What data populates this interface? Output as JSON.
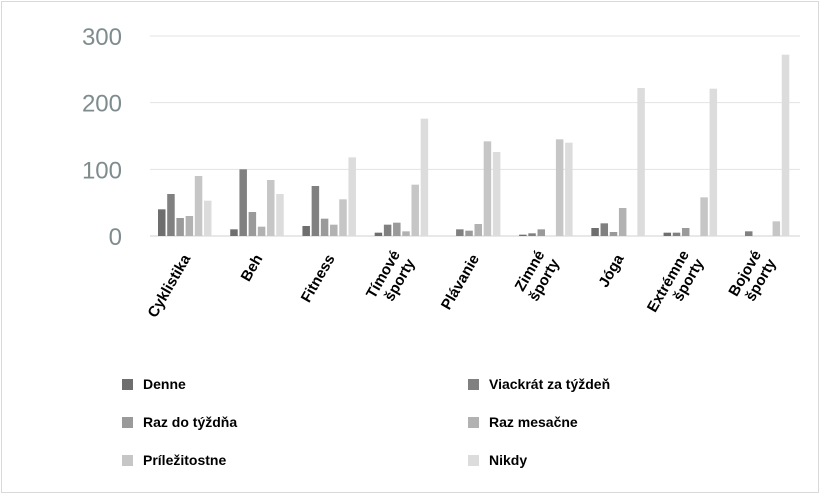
{
  "chart_data": {
    "type": "bar",
    "categories": [
      [
        "Cyklistika"
      ],
      [
        "Beh"
      ],
      [
        "Fitness"
      ],
      [
        "Tímové",
        "športy"
      ],
      [
        "Plávanie"
      ],
      [
        "Zimné",
        "športy"
      ],
      [
        "Jóga"
      ],
      [
        "Extrémne",
        "športy"
      ],
      [
        "Bojové",
        "športy"
      ]
    ],
    "series": [
      {
        "name": "Denne",
        "color": "#6e6e6e",
        "values": [
          40,
          10,
          15,
          5,
          0,
          2,
          12,
          5,
          0
        ]
      },
      {
        "name": "Viackrát za týždeň",
        "color": "#808080",
        "values": [
          63,
          100,
          75,
          17,
          10,
          4,
          19,
          5,
          7
        ]
      },
      {
        "name": "Raz do týždňa",
        "color": "#9a9a9a",
        "values": [
          27,
          36,
          26,
          20,
          8,
          10,
          6,
          12,
          0
        ]
      },
      {
        "name": "Raz mesačne",
        "color": "#b2b2b2",
        "values": [
          30,
          14,
          17,
          7,
          18,
          0,
          42,
          0,
          0
        ]
      },
      {
        "name": "Príležitostne",
        "color": "#c6c6c6",
        "values": [
          90,
          84,
          55,
          77,
          142,
          145,
          0,
          58,
          22
        ]
      },
      {
        "name": "Nikdy",
        "color": "#dcdcdc",
        "values": [
          53,
          63,
          118,
          176,
          126,
          140,
          222,
          221,
          272
        ]
      }
    ],
    "yticks": [
      0,
      100,
      200,
      300
    ],
    "ylim": [
      0,
      300
    ],
    "grid": true,
    "legend_position": "bottom"
  }
}
